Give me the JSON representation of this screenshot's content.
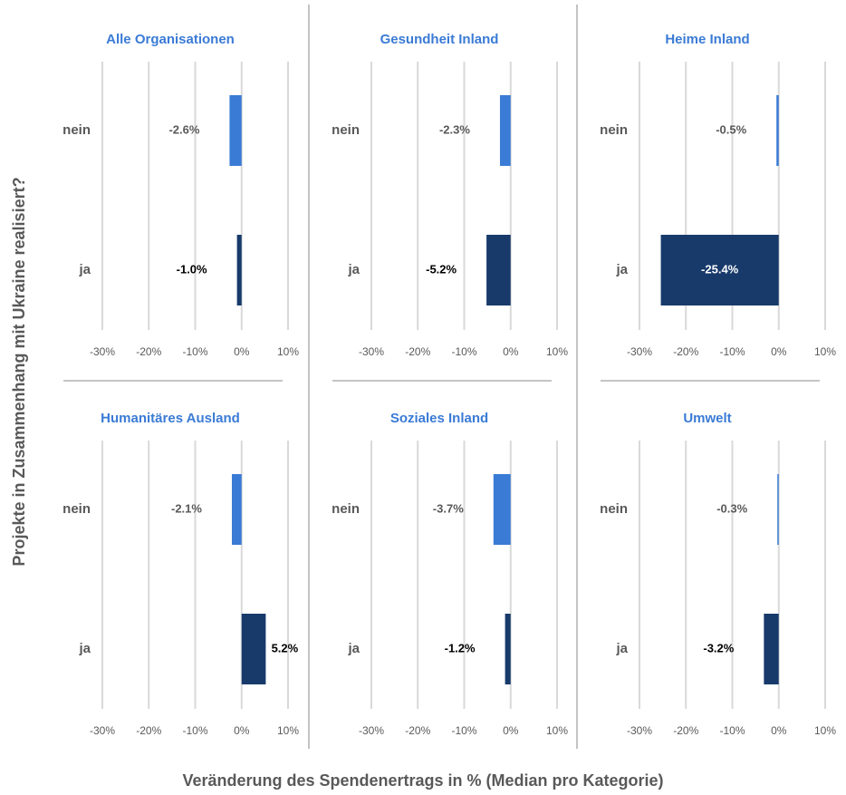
{
  "ylabel": "Projekte in Zusammenhang mit Ukraine realisiert?",
  "xlabel": "Veränderung des Spendenertrags in % (Median pro Kategorie)",
  "chart_data": [
    {
      "type": "hbar",
      "title": "Alle Organisationen",
      "categories": [
        "nein",
        "ja"
      ],
      "values": [
        -2.6,
        -1.0
      ],
      "value_labels": [
        "-2.6%",
        "-1.0%"
      ],
      "colors": [
        "#3a7bd5",
        "#173a6b"
      ],
      "xlim": [
        -30,
        10
      ],
      "xticks": [
        {
          "value": -30,
          "label": "-30%"
        },
        {
          "value": -20,
          "label": "-20%"
        },
        {
          "value": -10,
          "label": "-10%"
        },
        {
          "value": 0,
          "label": "0%"
        },
        {
          "value": 10,
          "label": "10%"
        }
      ],
      "grid": true
    },
    {
      "type": "hbar",
      "title": "Gesundheit Inland",
      "categories": [
        "nein",
        "ja"
      ],
      "values": [
        -2.3,
        -5.2
      ],
      "value_labels": [
        "-2.3%",
        "-5.2%"
      ],
      "colors": [
        "#3a7bd5",
        "#173a6b"
      ],
      "xlim": [
        -30,
        10
      ],
      "xticks": [
        {
          "value": -30,
          "label": "-30%"
        },
        {
          "value": -20,
          "label": "-20%"
        },
        {
          "value": -10,
          "label": "-10%"
        },
        {
          "value": 0,
          "label": "0%"
        },
        {
          "value": 10,
          "label": "10%"
        }
      ],
      "grid": true
    },
    {
      "type": "hbar",
      "title": "Heime Inland",
      "categories": [
        "nein",
        "ja"
      ],
      "values": [
        -0.5,
        -25.4
      ],
      "value_labels": [
        "-0.5%",
        "-25.4%"
      ],
      "colors": [
        "#3a7bd5",
        "#173a6b"
      ],
      "xlim": [
        -30,
        10
      ],
      "xticks": [
        {
          "value": -30,
          "label": "-30%"
        },
        {
          "value": -20,
          "label": "-20%"
        },
        {
          "value": -10,
          "label": "-10%"
        },
        {
          "value": 0,
          "label": "0%"
        },
        {
          "value": 10,
          "label": "10%"
        }
      ],
      "grid": true
    },
    {
      "type": "hbar",
      "title": "Humanitäres Ausland",
      "categories": [
        "nein",
        "ja"
      ],
      "values": [
        -2.1,
        5.2
      ],
      "value_labels": [
        "-2.1%",
        "5.2%"
      ],
      "colors": [
        "#3a7bd5",
        "#173a6b"
      ],
      "xlim": [
        -30,
        10
      ],
      "xticks": [
        {
          "value": -30,
          "label": "-30%"
        },
        {
          "value": -20,
          "label": "-20%"
        },
        {
          "value": -10,
          "label": "-10%"
        },
        {
          "value": 0,
          "label": "0%"
        },
        {
          "value": 10,
          "label": "10%"
        }
      ],
      "grid": true
    },
    {
      "type": "hbar",
      "title": "Soziales Inland",
      "categories": [
        "nein",
        "ja"
      ],
      "values": [
        -3.7,
        -1.2
      ],
      "value_labels": [
        "-3.7%",
        "-1.2%"
      ],
      "colors": [
        "#3a7bd5",
        "#173a6b"
      ],
      "xlim": [
        -30,
        10
      ],
      "xticks": [
        {
          "value": -30,
          "label": "-30%"
        },
        {
          "value": -20,
          "label": "-20%"
        },
        {
          "value": -10,
          "label": "-10%"
        },
        {
          "value": 0,
          "label": "0%"
        },
        {
          "value": 10,
          "label": "10%"
        }
      ],
      "grid": true
    },
    {
      "type": "hbar",
      "title": "Umwelt",
      "categories": [
        "nein",
        "ja"
      ],
      "values": [
        -0.3,
        -3.2
      ],
      "value_labels": [
        "-0.3%",
        "-3.2%"
      ],
      "colors": [
        "#3a7bd5",
        "#173a6b"
      ],
      "xlim": [
        -30,
        10
      ],
      "xticks": [
        {
          "value": -30,
          "label": "-30%"
        },
        {
          "value": -20,
          "label": "-20%"
        },
        {
          "value": -10,
          "label": "-10%"
        },
        {
          "value": 0,
          "label": "0%"
        },
        {
          "value": 10,
          "label": "10%"
        }
      ],
      "grid": true
    }
  ]
}
